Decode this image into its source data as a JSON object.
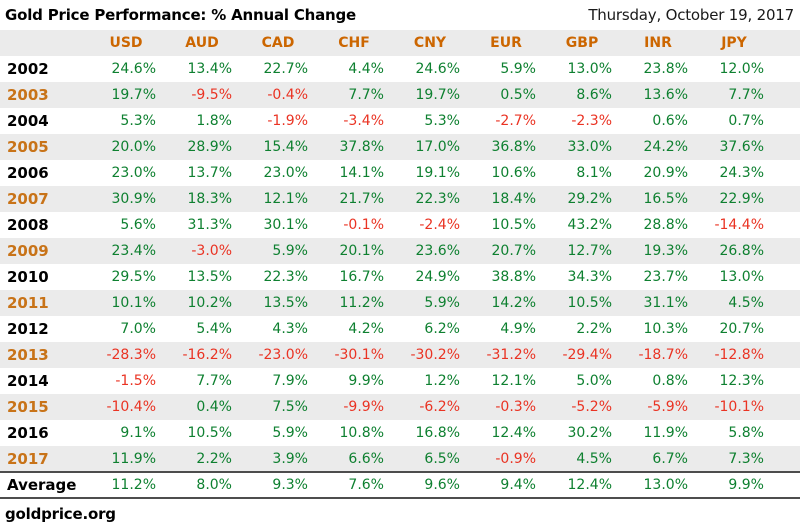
{
  "header": {
    "title": "Gold Price Performance: % Annual Change",
    "date": "Thursday, October 19, 2017"
  },
  "footer": {
    "source": "goldprice.org"
  },
  "colors": {
    "positive": "#0e8030",
    "negative": "#ea3323",
    "header_orange": "#cc6600",
    "year_orange": "#c87318",
    "stripe_gray": "#ebebeb",
    "border_dark": "#4d4d4d"
  },
  "chart_data": {
    "type": "table",
    "title": "Gold Price Performance: % Annual Change",
    "columns": [
      "USD",
      "AUD",
      "CAD",
      "CHF",
      "CNY",
      "EUR",
      "GBP",
      "INR",
      "JPY"
    ],
    "rows": [
      {
        "label": "2002",
        "values": [
          "24.6%",
          "13.4%",
          "22.7%",
          "4.4%",
          "24.6%",
          "5.9%",
          "13.0%",
          "23.8%",
          "12.0%"
        ]
      },
      {
        "label": "2003",
        "values": [
          "19.7%",
          "-9.5%",
          "-0.4%",
          "7.7%",
          "19.7%",
          "0.5%",
          "8.6%",
          "13.6%",
          "7.7%"
        ]
      },
      {
        "label": "2004",
        "values": [
          "5.3%",
          "1.8%",
          "-1.9%",
          "-3.4%",
          "5.3%",
          "-2.7%",
          "-2.3%",
          "0.6%",
          "0.7%"
        ]
      },
      {
        "label": "2005",
        "values": [
          "20.0%",
          "28.9%",
          "15.4%",
          "37.8%",
          "17.0%",
          "36.8%",
          "33.0%",
          "24.2%",
          "37.6%"
        ]
      },
      {
        "label": "2006",
        "values": [
          "23.0%",
          "13.7%",
          "23.0%",
          "14.1%",
          "19.1%",
          "10.6%",
          "8.1%",
          "20.9%",
          "24.3%"
        ]
      },
      {
        "label": "2007",
        "values": [
          "30.9%",
          "18.3%",
          "12.1%",
          "21.7%",
          "22.3%",
          "18.4%",
          "29.2%",
          "16.5%",
          "22.9%"
        ]
      },
      {
        "label": "2008",
        "values": [
          "5.6%",
          "31.3%",
          "30.1%",
          "-0.1%",
          "-2.4%",
          "10.5%",
          "43.2%",
          "28.8%",
          "-14.4%"
        ]
      },
      {
        "label": "2009",
        "values": [
          "23.4%",
          "-3.0%",
          "5.9%",
          "20.1%",
          "23.6%",
          "20.7%",
          "12.7%",
          "19.3%",
          "26.8%"
        ]
      },
      {
        "label": "2010",
        "values": [
          "29.5%",
          "13.5%",
          "22.3%",
          "16.7%",
          "24.9%",
          "38.8%",
          "34.3%",
          "23.7%",
          "13.0%"
        ]
      },
      {
        "label": "2011",
        "values": [
          "10.1%",
          "10.2%",
          "13.5%",
          "11.2%",
          "5.9%",
          "14.2%",
          "10.5%",
          "31.1%",
          "4.5%"
        ]
      },
      {
        "label": "2012",
        "values": [
          "7.0%",
          "5.4%",
          "4.3%",
          "4.2%",
          "6.2%",
          "4.9%",
          "2.2%",
          "10.3%",
          "20.7%"
        ]
      },
      {
        "label": "2013",
        "values": [
          "-28.3%",
          "-16.2%",
          "-23.0%",
          "-30.1%",
          "-30.2%",
          "-31.2%",
          "-29.4%",
          "-18.7%",
          "-12.8%"
        ]
      },
      {
        "label": "2014",
        "values": [
          "-1.5%",
          "7.7%",
          "7.9%",
          "9.9%",
          "1.2%",
          "12.1%",
          "5.0%",
          "0.8%",
          "12.3%"
        ]
      },
      {
        "label": "2015",
        "values": [
          "-10.4%",
          "0.4%",
          "7.5%",
          "-9.9%",
          "-6.2%",
          "-0.3%",
          "-5.2%",
          "-5.9%",
          "-10.1%"
        ]
      },
      {
        "label": "2016",
        "values": [
          "9.1%",
          "10.5%",
          "5.9%",
          "10.8%",
          "16.8%",
          "12.4%",
          "30.2%",
          "11.9%",
          "5.8%"
        ]
      },
      {
        "label": "2017",
        "values": [
          "11.9%",
          "2.2%",
          "3.9%",
          "6.6%",
          "6.5%",
          "-0.9%",
          "4.5%",
          "6.7%",
          "7.3%"
        ]
      }
    ],
    "average_row": {
      "label": "Average",
      "values": [
        "11.2%",
        "8.0%",
        "9.3%",
        "7.6%",
        "9.6%",
        "9.4%",
        "12.4%",
        "13.0%",
        "9.9%"
      ]
    }
  }
}
